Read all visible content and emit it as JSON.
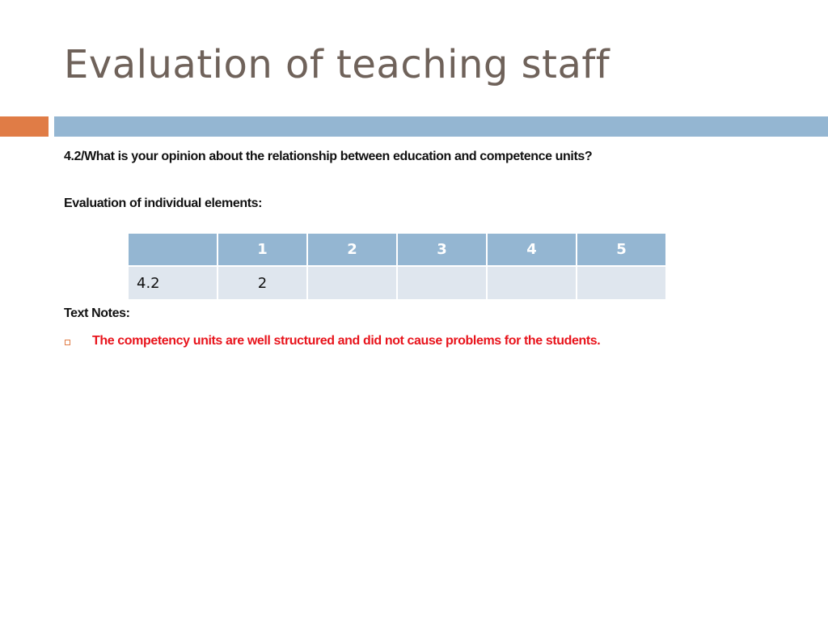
{
  "slide": {
    "title": "Evaluation of teaching staff",
    "question": "4.2/What is your opinion about the relationship between education and competence units?",
    "evaluation_label": "Evaluation of individual elements:",
    "table": {
      "headers": [
        "",
        "1",
        "2",
        "3",
        "4",
        "5"
      ],
      "rows": [
        [
          "4.2",
          "2",
          "",
          "",
          "",
          ""
        ]
      ]
    },
    "notes_label": "Text Notes:",
    "notes": [
      "The competency units are well structured and did not cause problems for the students."
    ]
  },
  "colors": {
    "title": "#6f625a",
    "accent_orange": "#e07c46",
    "accent_blue": "#94b6d2",
    "table_body": "#dfe6ee",
    "note_text": "#e8141c"
  }
}
